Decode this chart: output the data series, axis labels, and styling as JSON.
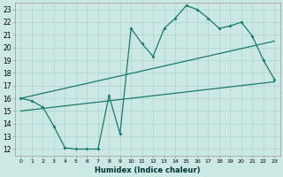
{
  "xlabel": "Humidex (Indice chaleur)",
  "bg_color": "#cce8e4",
  "line_color": "#1a7a6a",
  "grid_color": "#b0d8d0",
  "ylim": [
    11.5,
    23.5
  ],
  "xlim": [
    -0.5,
    23.5
  ],
  "yticks": [
    12,
    13,
    14,
    15,
    16,
    17,
    18,
    19,
    20,
    21,
    22,
    23
  ],
  "xticks": [
    0,
    1,
    2,
    3,
    4,
    5,
    6,
    7,
    8,
    9,
    10,
    11,
    12,
    13,
    14,
    15,
    16,
    17,
    18,
    19,
    20,
    21,
    22,
    23
  ],
  "series1_x": [
    0,
    1,
    2,
    3,
    4,
    5,
    6,
    7,
    8,
    9,
    10,
    11,
    12,
    13,
    14,
    15,
    16,
    17,
    18,
    19,
    20,
    21,
    22,
    23
  ],
  "series1_y": [
    16.0,
    15.8,
    15.3,
    13.8,
    12.1,
    12.0,
    12.0,
    12.0,
    16.2,
    13.2,
    21.5,
    20.3,
    19.3,
    21.5,
    22.3,
    23.3,
    23.0,
    22.3,
    21.5,
    21.7,
    22.0,
    20.9,
    19.0,
    17.5
  ],
  "line2_x": [
    0,
    23
  ],
  "line2_y": [
    16.0,
    20.5
  ],
  "line3_x": [
    0,
    23
  ],
  "line3_y": [
    15.0,
    17.3
  ]
}
